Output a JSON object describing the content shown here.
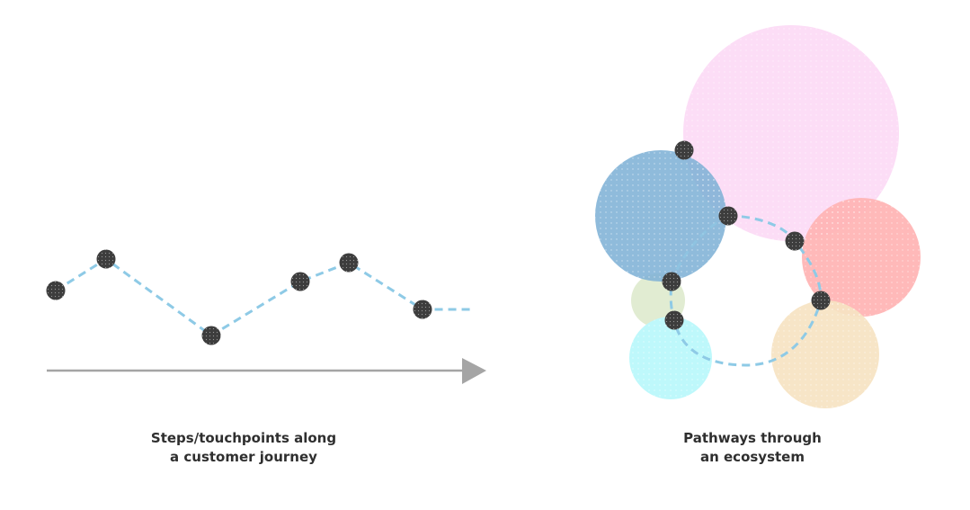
{
  "left_panel": {
    "caption_line_1": "Steps/touchpoints along",
    "caption_line_2": "a customer journey"
  },
  "right_panel": {
    "caption_line_1": "Pathways through",
    "caption_line_2": "an ecosystem"
  },
  "colors": {
    "node": "#3d3d3d",
    "path": "#8ecae6",
    "axis": "#a5a5a5",
    "circle_pink": "#fcd9f5",
    "circle_blue": "#7fb2d6",
    "circle_red": "#ffb3b3",
    "circle_green": "#e1ecd2",
    "circle_cyan": "#bef8fb",
    "circle_tan": "#f6e3c2"
  }
}
